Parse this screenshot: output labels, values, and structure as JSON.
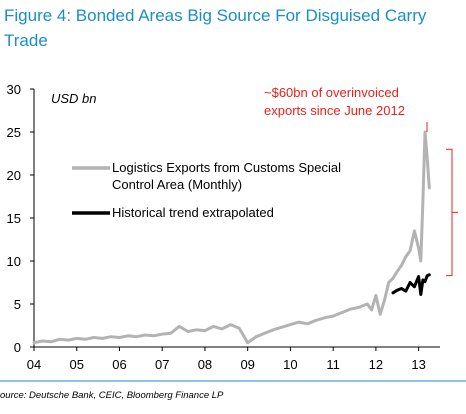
{
  "figure": {
    "title_line1": "Figure 4: Bonded Areas Big Source For Disguised Carry",
    "title_line2": "Trade",
    "source": "ource: Deutsche Bank, CEIC, Bloomberg Finance LP"
  },
  "colors": {
    "title": "#1a8fc4",
    "series_logistics": "#b3b3b3",
    "series_trend": "#000000",
    "annotation": "#e8211c",
    "rule": "#1a8fc4"
  },
  "chart_data": {
    "type": "line",
    "unit_label": "USD bn",
    "x_ticks": [
      "04",
      "05",
      "06",
      "07",
      "08",
      "09",
      "10",
      "11",
      "12",
      "13"
    ],
    "y_ticks": [
      "0",
      "5",
      "10",
      "15",
      "20",
      "25",
      "30"
    ],
    "ylim": [
      0,
      30
    ],
    "xlim": [
      2004.0,
      2013.5
    ],
    "grid": false,
    "legend_position": "center-left",
    "series": [
      {
        "name": "Logistics Exports from Customs Special Control Area (Monthly)",
        "name_line1": "Logistics Exports from Customs Special",
        "name_line2": "Control Area (Monthly)",
        "x": [
          2004.0,
          2004.2,
          2004.4,
          2004.6,
          2004.8,
          2005.0,
          2005.2,
          2005.4,
          2005.6,
          2005.8,
          2006.0,
          2006.2,
          2006.4,
          2006.6,
          2006.8,
          2007.0,
          2007.2,
          2007.4,
          2007.6,
          2007.8,
          2008.0,
          2008.2,
          2008.4,
          2008.6,
          2008.8,
          2009.0,
          2009.2,
          2009.4,
          2009.6,
          2009.8,
          2010.0,
          2010.2,
          2010.4,
          2010.6,
          2010.8,
          2011.0,
          2011.2,
          2011.4,
          2011.6,
          2011.8,
          2011.9,
          2012.0,
          2012.1,
          2012.2,
          2012.3,
          2012.4,
          2012.5,
          2012.6,
          2012.7,
          2012.8,
          2012.9,
          2013.0,
          2013.05,
          2013.1,
          2013.15,
          2013.2,
          2013.25
        ],
        "values": [
          0.5,
          0.7,
          0.6,
          0.9,
          0.8,
          1.0,
          0.9,
          1.1,
          1.0,
          1.2,
          1.1,
          1.3,
          1.2,
          1.4,
          1.3,
          1.5,
          1.6,
          2.4,
          1.8,
          2.0,
          1.9,
          2.4,
          2.1,
          2.6,
          2.2,
          0.5,
          1.2,
          1.6,
          2.0,
          2.3,
          2.6,
          2.9,
          2.7,
          3.1,
          3.4,
          3.6,
          4.0,
          4.4,
          4.6,
          5.0,
          4.3,
          6.0,
          3.8,
          5.4,
          7.5,
          8.0,
          8.8,
          9.5,
          10.5,
          11.2,
          13.5,
          11.5,
          10.0,
          17.0,
          25.0,
          22.0,
          18.5
        ]
      },
      {
        "name": "Historical trend extrapolated",
        "x": [
          2012.4,
          2012.5,
          2012.6,
          2012.7,
          2012.8,
          2012.9,
          2013.0,
          2013.05,
          2013.1,
          2013.15,
          2013.2,
          2013.25
        ],
        "values": [
          6.3,
          6.6,
          6.8,
          6.5,
          7.5,
          7.0,
          8.2,
          6.1,
          7.8,
          7.6,
          8.3,
          8.4
        ]
      }
    ],
    "annotations": [
      {
        "text_line1": "~$60bn of overinvoiced",
        "text_line2": "exports since June 2012",
        "bracket_from": 8.3,
        "bracket_to": 23.0
      }
    ]
  }
}
